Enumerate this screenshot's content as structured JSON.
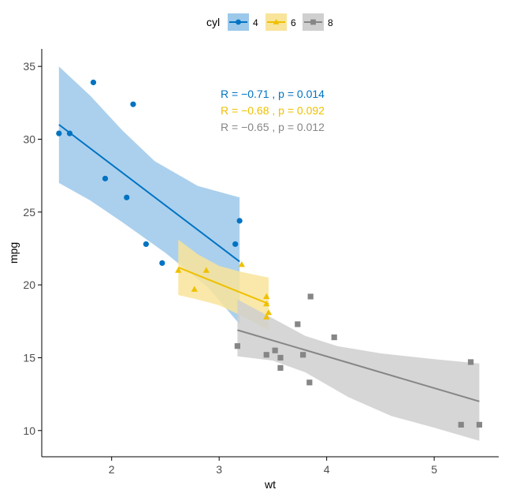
{
  "chart_data": {
    "type": "scatter",
    "xlabel": "wt",
    "ylabel": "mpg",
    "xlim": [
      1.35,
      5.6
    ],
    "ylim": [
      8.2,
      36.2
    ],
    "x_ticks": [
      2,
      3,
      4,
      5
    ],
    "y_ticks": [
      10,
      15,
      20,
      25,
      30,
      35
    ],
    "grid": false,
    "legend": {
      "position": "top",
      "title": "cyl",
      "entries": [
        "4",
        "6",
        "8"
      ]
    },
    "series": [
      {
        "name": "4",
        "color": "#0073C2",
        "fill": "#9CC8EA",
        "marker": "circle",
        "points": [
          [
            1.51,
            30.4
          ],
          [
            1.61,
            30.4
          ],
          [
            1.83,
            33.9
          ],
          [
            1.94,
            27.3
          ],
          [
            2.14,
            26.0
          ],
          [
            2.2,
            32.4
          ],
          [
            2.32,
            22.8
          ],
          [
            2.47,
            21.5
          ],
          [
            3.15,
            22.8
          ],
          [
            3.19,
            24.4
          ]
        ],
        "fit": [
          [
            1.51,
            31.0
          ],
          [
            3.19,
            21.6
          ]
        ],
        "band_upper": [
          [
            1.51,
            35.0
          ],
          [
            1.8,
            33.0
          ],
          [
            2.1,
            30.6
          ],
          [
            2.4,
            28.5
          ],
          [
            2.8,
            26.8
          ],
          [
            3.19,
            26.0
          ]
        ],
        "band_lower": [
          [
            1.51,
            27.0
          ],
          [
            1.8,
            25.8
          ],
          [
            2.1,
            24.3
          ],
          [
            2.5,
            22.2
          ],
          [
            2.9,
            19.8
          ],
          [
            3.19,
            17.3
          ]
        ]
      },
      {
        "name": "6",
        "color": "#EFC000",
        "fill": "#F8E49A",
        "marker": "triangle",
        "points": [
          [
            2.62,
            21.0
          ],
          [
            2.77,
            19.7
          ],
          [
            2.88,
            21.0
          ],
          [
            3.21,
            21.4
          ],
          [
            3.44,
            19.2
          ],
          [
            3.44,
            18.7
          ],
          [
            3.46,
            18.1
          ],
          [
            3.44,
            17.8
          ]
        ],
        "fit": [
          [
            2.62,
            21.2
          ],
          [
            3.46,
            18.7
          ]
        ],
        "band_upper": [
          [
            2.62,
            23.1
          ],
          [
            2.8,
            22.1
          ],
          [
            3.0,
            21.3
          ],
          [
            3.2,
            20.9
          ],
          [
            3.46,
            20.5
          ]
        ],
        "band_lower": [
          [
            2.62,
            19.3
          ],
          [
            2.8,
            19.0
          ],
          [
            3.0,
            18.6
          ],
          [
            3.2,
            17.9
          ],
          [
            3.46,
            16.9
          ]
        ]
      },
      {
        "name": "8",
        "color": "#868686",
        "fill": "#CFCFCF",
        "marker": "square",
        "points": [
          [
            3.17,
            15.8
          ],
          [
            3.44,
            15.2
          ],
          [
            3.52,
            15.5
          ],
          [
            3.57,
            15.0
          ],
          [
            3.57,
            14.3
          ],
          [
            3.73,
            17.3
          ],
          [
            3.78,
            15.2
          ],
          [
            3.84,
            13.3
          ],
          [
            3.85,
            19.2
          ],
          [
            4.07,
            16.4
          ],
          [
            5.25,
            10.4
          ],
          [
            5.34,
            14.7
          ],
          [
            5.42,
            10.4
          ]
        ],
        "fit": [
          [
            3.17,
            16.9
          ],
          [
            5.42,
            12.0
          ]
        ],
        "band_upper": [
          [
            3.17,
            19.0
          ],
          [
            3.5,
            17.7
          ],
          [
            3.8,
            16.5
          ],
          [
            4.1,
            15.8
          ],
          [
            4.5,
            15.3
          ],
          [
            5.0,
            14.9
          ],
          [
            5.42,
            14.6
          ]
        ],
        "band_lower": [
          [
            3.17,
            15.1
          ],
          [
            3.5,
            14.8
          ],
          [
            3.8,
            14.0
          ],
          [
            4.2,
            12.3
          ],
          [
            4.6,
            11.0
          ],
          [
            5.0,
            10.2
          ],
          [
            5.42,
            9.3
          ]
        ]
      }
    ],
    "annotations": [
      {
        "text": "R = −0.71 , p = 0.014",
        "color": "#0073C2"
      },
      {
        "text": "R = −0.68 , p = 0.092",
        "color": "#EFC000"
      },
      {
        "text": "R = −0.65 , p = 0.012",
        "color": "#868686"
      }
    ]
  }
}
